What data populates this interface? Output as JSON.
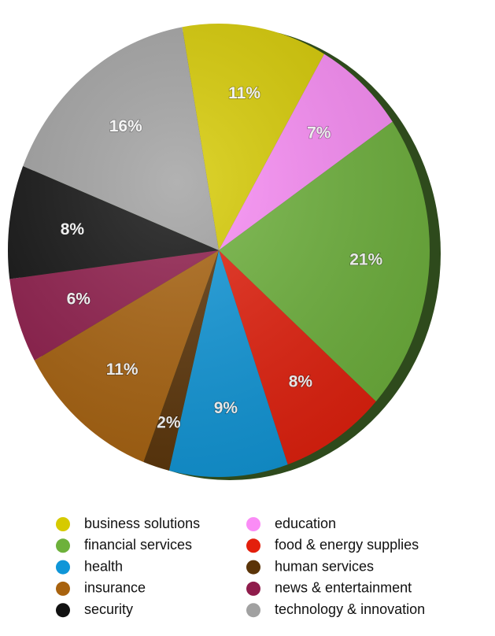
{
  "chart_data": {
    "type": "pie",
    "categories": [
      "business solutions",
      "education",
      "financial services",
      "food & energy supplies",
      "health",
      "human services",
      "insurance",
      "news & entertainment",
      "security",
      "technology & innovation"
    ],
    "values": [
      11,
      7,
      21,
      8,
      9,
      2,
      11,
      6,
      8,
      16
    ],
    "value_labels": [
      "11%",
      "7%",
      "21%",
      "8%",
      "9%",
      "2%",
      "11%",
      "6%",
      "8%",
      "16%"
    ],
    "colors": [
      "#d6ca00",
      "#fa8cf6",
      "#6db13b",
      "#e31f0c",
      "#0f96d8",
      "#5b3408",
      "#a8620e",
      "#8f1c4b",
      "#111111",
      "#a1a1a1"
    ]
  }
}
